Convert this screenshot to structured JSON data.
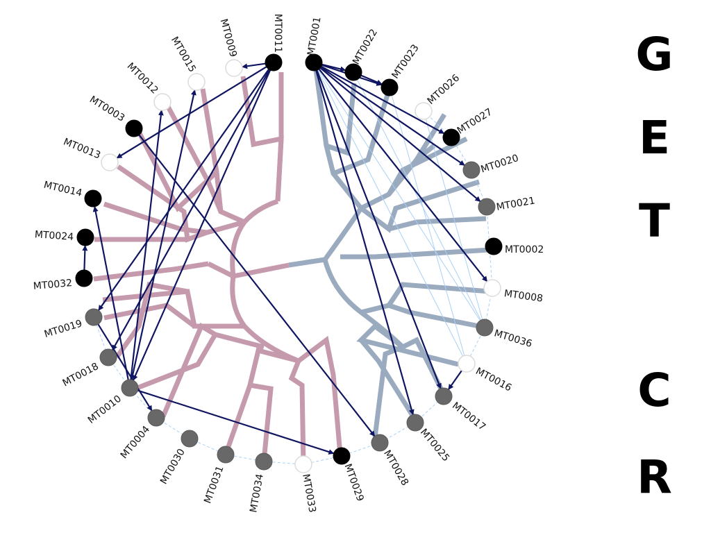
{
  "colors": {
    "group_left_branch": "#c49aac",
    "group_right_branch": "#9aaabf",
    "arrow": "#0f1560",
    "bundle": "#a9d0f5",
    "hull": "#a9d0f5",
    "node_black": "#000000",
    "node_gray": "#686868",
    "node_white": "#ffffff"
  },
  "side_letters": [
    "G",
    "E",
    "T",
    "C",
    "R"
  ],
  "nodes": [
    {
      "id": "MT0001",
      "fill": "black"
    },
    {
      "id": "MT0022",
      "fill": "black"
    },
    {
      "id": "MT0023",
      "fill": "black"
    },
    {
      "id": "MT0026",
      "fill": "white"
    },
    {
      "id": "MT0027",
      "fill": "black"
    },
    {
      "id": "MT0020",
      "fill": "gray"
    },
    {
      "id": "MT0021",
      "fill": "gray"
    },
    {
      "id": "MT0002",
      "fill": "black"
    },
    {
      "id": "MT0008",
      "fill": "white"
    },
    {
      "id": "MT0036",
      "fill": "gray"
    },
    {
      "id": "MT0016",
      "fill": "white"
    },
    {
      "id": "MT0017",
      "fill": "gray"
    },
    {
      "id": "MT0025",
      "fill": "gray"
    },
    {
      "id": "MT0028",
      "fill": "gray"
    },
    {
      "id": "MT0029",
      "fill": "black"
    },
    {
      "id": "MT0033",
      "fill": "white"
    },
    {
      "id": "MT0034",
      "fill": "gray"
    },
    {
      "id": "MT0031",
      "fill": "gray"
    },
    {
      "id": "MT0030",
      "fill": "gray"
    },
    {
      "id": "MT0004",
      "fill": "gray"
    },
    {
      "id": "MT0010",
      "fill": "gray"
    },
    {
      "id": "MT0018",
      "fill": "gray"
    },
    {
      "id": "MT0019",
      "fill": "gray"
    },
    {
      "id": "MT0032",
      "fill": "black"
    },
    {
      "id": "MT0024",
      "fill": "black"
    },
    {
      "id": "MT0014",
      "fill": "black"
    },
    {
      "id": "MT0013",
      "fill": "white"
    },
    {
      "id": "MT0003",
      "fill": "black"
    },
    {
      "id": "MT0012",
      "fill": "white"
    },
    {
      "id": "MT0015",
      "fill": "white"
    },
    {
      "id": "MT0009",
      "fill": "white"
    },
    {
      "id": "MT0011",
      "fill": "black"
    }
  ],
  "edges": [
    {
      "from": "MT0001",
      "to": "MT0022"
    },
    {
      "from": "MT0022",
      "to": "MT0023"
    },
    {
      "from": "MT0001",
      "to": "MT0023"
    },
    {
      "from": "MT0001",
      "to": "MT0027"
    },
    {
      "from": "MT0001",
      "to": "MT0020"
    },
    {
      "from": "MT0001",
      "to": "MT0021"
    },
    {
      "from": "MT0001",
      "to": "MT0008"
    },
    {
      "from": "MT0001",
      "to": "MT0017"
    },
    {
      "from": "MT0001",
      "to": "MT0025"
    },
    {
      "from": "MT0016",
      "to": "MT0017"
    },
    {
      "from": "MT0011",
      "to": "MT0009"
    },
    {
      "from": "MT0011",
      "to": "MT0013"
    },
    {
      "from": "MT0011",
      "to": "MT0019"
    },
    {
      "from": "MT0011",
      "to": "MT0018"
    },
    {
      "from": "MT0011",
      "to": "MT0010"
    },
    {
      "from": "MT0003",
      "to": "MT0028"
    },
    {
      "from": "MT0010",
      "to": "MT0012"
    },
    {
      "from": "MT0010",
      "to": "MT0015"
    },
    {
      "from": "MT0010",
      "to": "MT0014"
    },
    {
      "from": "MT0010",
      "to": "MT0029"
    },
    {
      "from": "MT0032",
      "to": "MT0024"
    },
    {
      "from": "MT0019",
      "to": "MT0004"
    }
  ],
  "bundles": [
    {
      "from": "MT0001",
      "to": "MT0036"
    },
    {
      "from": "MT0001",
      "to": "MT0016"
    },
    {
      "from": "MT0022",
      "to": "MT0036"
    },
    {
      "from": "MT0023",
      "to": "MT0016"
    },
    {
      "from": "MT0026",
      "to": "MT0036"
    }
  ],
  "hull_path": [
    "MT0026",
    "MT0027",
    "MT0020",
    "MT0021",
    "MT0008",
    "MT0036",
    "MT0016",
    "MT0017",
    "MT0025",
    "MT0028",
    "MT0029",
    "MT0033",
    "MT0034",
    "MT0031",
    "MT0030",
    "MT0004",
    "MT0010",
    "MT0018",
    "MT0019"
  ]
}
